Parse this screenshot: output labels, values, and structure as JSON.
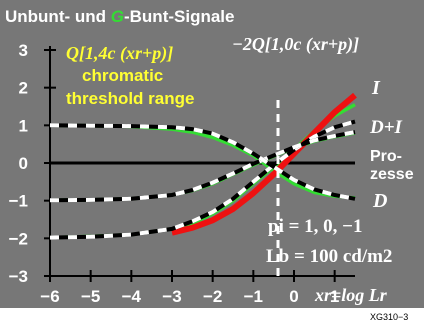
{
  "title_parts": {
    "pre": "Unbunt- und ",
    "g": "G",
    "post": "-Bunt-Signale"
  },
  "figure_code": "XG310−3",
  "labels": {
    "left_formula": "Q[1,4c (xr+p)]",
    "right_formula": "−2Q[1,0c (xr+p)]",
    "chromatic_1": "chromatic",
    "chromatic_2": "threshold range",
    "curve_I": "I",
    "curve_DI": "D+I",
    "curve_D": "D",
    "prozesse_1": "Pro-",
    "prozesse_2": "zesse",
    "p_values": "pi = 1, 0, −1",
    "luminance": "Lb = 100 cd/m2",
    "x_axis": "xr=log Lr"
  },
  "colors": {
    "background": "#777777",
    "axes": "#000000",
    "green": "#33dd33",
    "red": "#ee1111",
    "white": "#ffffff",
    "yellow": "#ffff33"
  },
  "chart_data": {
    "type": "line",
    "title": "Unbunt- und G-Bunt-Signale",
    "xlabel": "xr=log Lr",
    "ylabel": "",
    "xlim": [
      -6,
      1.5
    ],
    "ylim": [
      -3,
      3
    ],
    "xticks": [
      -6,
      -5,
      -4,
      -3,
      -2,
      -1,
      0,
      1
    ],
    "yticks": [
      3,
      2,
      1,
      0,
      -1,
      -2,
      -3
    ],
    "grid": false,
    "x": [
      -6,
      -5,
      -4,
      -3,
      -2.5,
      -2,
      -1.5,
      -1,
      -0.5,
      0,
      0.5,
      1,
      1.5
    ],
    "series": [
      {
        "name": "I",
        "style": "green solid",
        "values": [
          -1.98,
          -1.95,
          -1.9,
          -1.75,
          -1.6,
          -1.35,
          -1.0,
          -0.55,
          -0.1,
          0.35,
          0.85,
          1.25,
          1.55
        ]
      },
      {
        "name": "D+I",
        "style": "green solid",
        "values": [
          -0.99,
          -0.98,
          -0.95,
          -0.85,
          -0.73,
          -0.55,
          -0.3,
          -0.05,
          0.18,
          0.4,
          0.58,
          0.7,
          0.8
        ]
      },
      {
        "name": "D",
        "style": "green solid",
        "values": [
          1.0,
          0.99,
          0.97,
          0.9,
          0.82,
          0.68,
          0.47,
          0.2,
          -0.2,
          -0.55,
          -0.78,
          -0.88,
          -0.93
        ]
      },
      {
        "name": "red",
        "style": "red solid (I, x ≥ −3)",
        "values": [
          null,
          null,
          null,
          -1.85,
          -1.72,
          -1.52,
          -1.22,
          -0.8,
          -0.3,
          0.25,
          0.8,
          1.35,
          1.8
        ]
      },
      {
        "name": "dashed-upper",
        "style": "black/white dashed",
        "values": [
          -1.98,
          -1.96,
          -1.9,
          -1.75,
          -1.55,
          -1.3,
          -0.95,
          -0.5,
          -0.05,
          0.35,
          0.7,
          0.95,
          1.1
        ]
      },
      {
        "name": "dashed-middle",
        "style": "black/white dashed",
        "values": [
          -0.99,
          -0.98,
          -0.95,
          -0.85,
          -0.72,
          -0.52,
          -0.28,
          -0.02,
          0.2,
          0.42,
          0.6,
          0.72,
          0.82
        ]
      },
      {
        "name": "dashed-lower",
        "style": "black/white dashed",
        "values": [
          1.0,
          0.99,
          0.98,
          0.95,
          0.9,
          0.78,
          0.55,
          0.25,
          -0.1,
          -0.45,
          -0.7,
          -0.85,
          -0.95
        ]
      }
    ]
  }
}
